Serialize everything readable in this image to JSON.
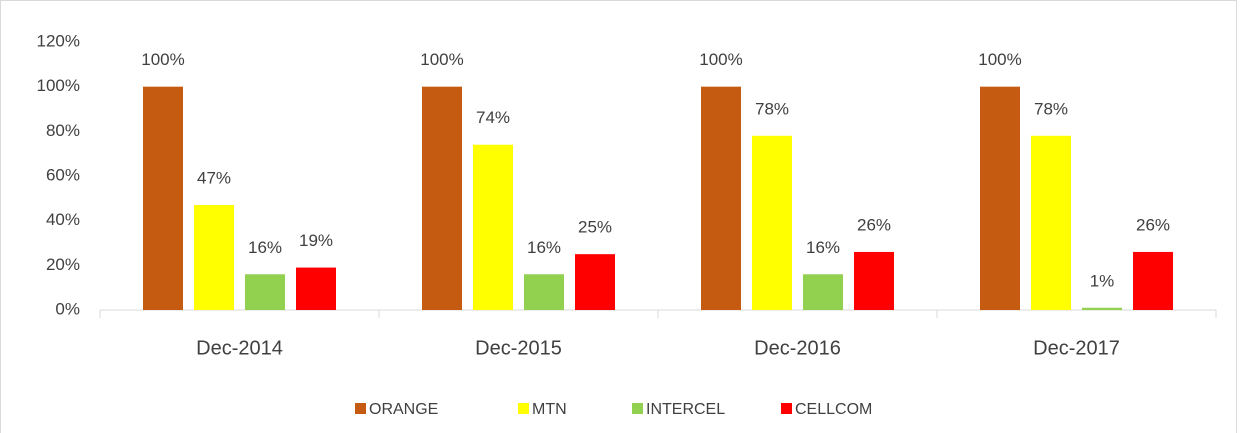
{
  "chart_data": {
    "type": "bar",
    "categories": [
      "Dec-2014",
      "Dec-2015",
      "Dec-2016",
      "Dec-2017"
    ],
    "series": [
      {
        "name": "ORANGE",
        "color": "#c55a11",
        "values": [
          100,
          100,
          100,
          100
        ],
        "value_labels": [
          "100%",
          "100%",
          "100%",
          "100%"
        ]
      },
      {
        "name": "MTN",
        "color": "#ffff00",
        "values": [
          47,
          74,
          78,
          78
        ],
        "value_labels": [
          "47%",
          "74%",
          "78%",
          "78%"
        ]
      },
      {
        "name": "INTERCEL",
        "color": "#92d050",
        "values": [
          16,
          16,
          16,
          1
        ],
        "value_labels": [
          "16%",
          "16%",
          "16%",
          "1%"
        ]
      },
      {
        "name": "CELLCOM",
        "color": "#ff0000",
        "values": [
          19,
          25,
          26,
          26
        ],
        "value_labels": [
          "19%",
          "25%",
          "26%",
          "26%"
        ]
      }
    ],
    "ylim": [
      0,
      120
    ],
    "yticks": [
      {
        "value": 0,
        "label": "0%"
      },
      {
        "value": 20,
        "label": "20%"
      },
      {
        "value": 40,
        "label": "40%"
      },
      {
        "value": 60,
        "label": "60%"
      },
      {
        "value": 80,
        "label": "80%"
      },
      {
        "value": 100,
        "label": "100%"
      },
      {
        "value": 120,
        "label": "120%"
      }
    ],
    "grid": false,
    "legend": "bottom"
  }
}
